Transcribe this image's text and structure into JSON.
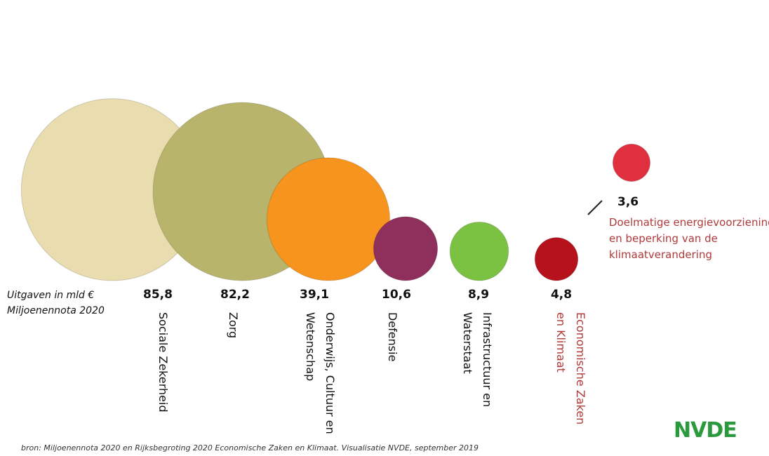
{
  "chart_data": {
    "type": "bubble",
    "subtitle": "Uitgaven in mld € Miljoenennota 2020",
    "categories": [
      "Sociale Zekerheid",
      "Zorg",
      "Onderwijs, Cultuur en Wetenschap",
      "Defensie",
      "Infrastructuur en Waterstaat",
      "Economische Zaken en Klimaat",
      "Doelmatige energievoorziening en beperking van de klimaatverandering"
    ],
    "values": [
      85.8,
      82.2,
      39.1,
      10.6,
      8.9,
      4.8,
      3.6
    ],
    "value_labels": [
      "85,8",
      "82,2",
      "39,1",
      "10,6",
      "8,9",
      "4,8",
      "3,6"
    ],
    "colors": [
      "#e9dcae",
      "#b9b46c",
      "#f7941d",
      "#8e2f5c",
      "#7cc242",
      "#b5121b",
      "#e0303f"
    ],
    "label_colors": [
      "#111111",
      "#111111",
      "#111111",
      "#111111",
      "#111111",
      "#b03a3a",
      "#b03a3a"
    ],
    "source": "bron: Miljoenennota 2020 en Rijksbegroting 2020 Economische Zaken en Klimaat. Visualisatie NVDE, september 2019",
    "logo": "NVDE"
  }
}
